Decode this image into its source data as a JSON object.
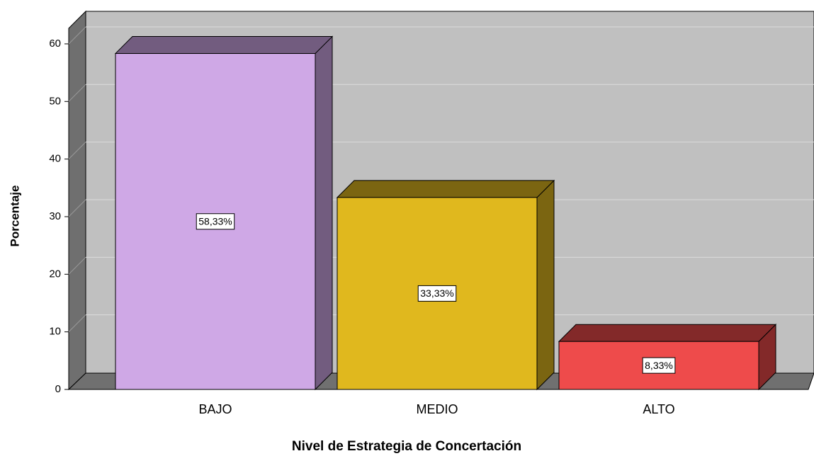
{
  "chart_data": {
    "type": "bar3d",
    "x_label": "Nivel de Estrategia de Concertación",
    "y_label": "Porcentaje",
    "categories": [
      "BAJO",
      "MEDIO",
      "ALTO"
    ],
    "values": [
      58.33,
      33.33,
      8.33
    ],
    "value_labels": [
      "58,33%",
      "33,33%",
      "8,33%"
    ],
    "colors": [
      "#cfa8e6",
      "#e0b81e",
      "#ee4b4b"
    ],
    "ylim": [
      0,
      62.7
    ],
    "yticks": [
      0,
      10,
      20,
      30,
      40,
      50,
      60
    ],
    "grid": true
  }
}
